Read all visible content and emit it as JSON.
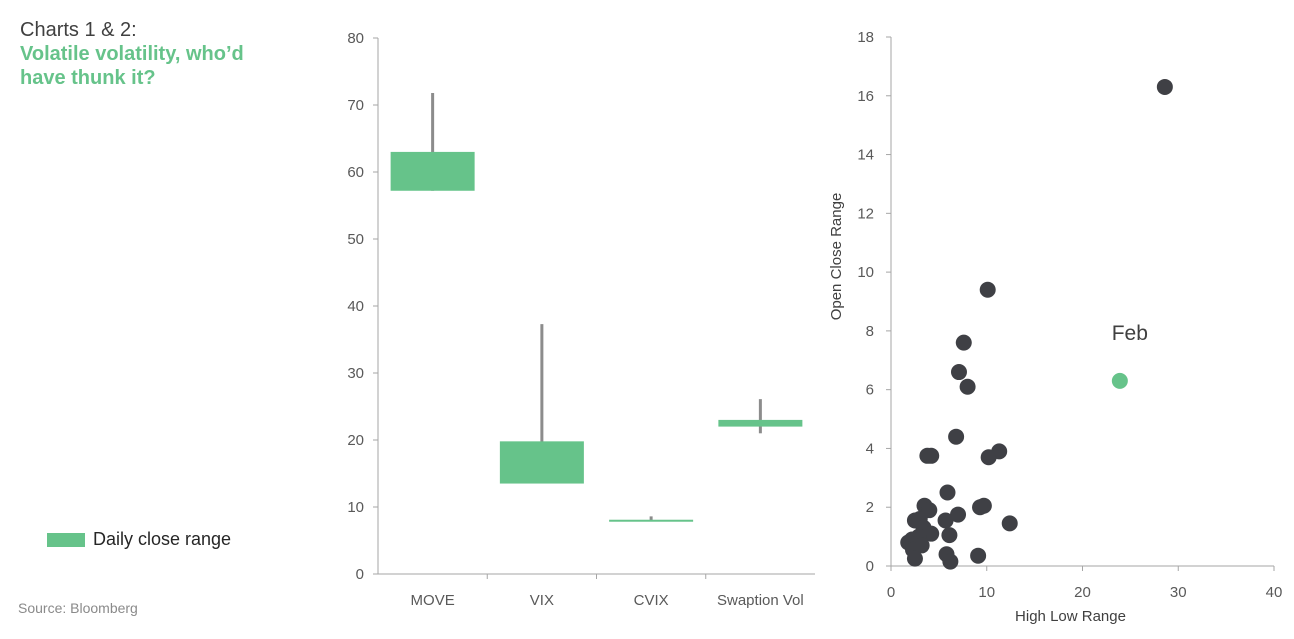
{
  "heading": {
    "label": "Charts 1 & 2:",
    "title_line1": "Volatile volatility, who’d",
    "title_line2": "have thunk it?"
  },
  "legend": {
    "label": "Daily close range",
    "color": "#66c38a"
  },
  "source": "Source: Bloomberg",
  "colors": {
    "bar": "#66c38a",
    "wick": "#8c8c8c",
    "dot": "#3f4045",
    "highlight": "#66c38a",
    "axis": "#a6a6a6"
  },
  "chart_data": [
    {
      "type": "bar",
      "subtype": "floating-range-with-high-wick",
      "categories": [
        "MOVE",
        "VIX",
        "CVIX",
        "Swaption Vol"
      ],
      "series": [
        {
          "name": "Daily close range low",
          "values": [
            57.2,
            13.5,
            7.9,
            22.0
          ]
        },
        {
          "name": "Daily close range high",
          "values": [
            63.0,
            19.8,
            8.1,
            23.0
          ]
        },
        {
          "name": "Intraday high",
          "values": [
            71.8,
            37.3,
            8.6,
            26.1
          ]
        },
        {
          "name": "Intraday low",
          "values": [
            57.2,
            13.5,
            7.9,
            21.0
          ]
        }
      ],
      "yticks": [
        "0",
        "10",
        "20",
        "30",
        "40",
        "50",
        "60",
        "70",
        "80"
      ],
      "ylim": [
        0,
        80
      ],
      "xlabel": "",
      "ylabel": ""
    },
    {
      "type": "scatter",
      "xlabel": "High Low Range",
      "ylabel": "Open Close Range",
      "xlim": [
        0,
        40
      ],
      "ylim": [
        0,
        18
      ],
      "xticks": [
        "0",
        "10",
        "20",
        "30",
        "40"
      ],
      "yticks": [
        "0",
        "2",
        "4",
        "6",
        "8",
        "10",
        "12",
        "14",
        "16",
        "18"
      ],
      "annotation": "Feb",
      "points": [
        {
          "x": 28.6,
          "y": 16.3
        },
        {
          "x": 10.1,
          "y": 9.4
        },
        {
          "x": 7.6,
          "y": 7.6
        },
        {
          "x": 7.1,
          "y": 6.6
        },
        {
          "x": 8.0,
          "y": 6.1
        },
        {
          "x": 6.8,
          "y": 4.4
        },
        {
          "x": 11.3,
          "y": 3.9
        },
        {
          "x": 10.2,
          "y": 3.7
        },
        {
          "x": 4.2,
          "y": 3.75
        },
        {
          "x": 3.8,
          "y": 3.75
        },
        {
          "x": 5.9,
          "y": 2.5
        },
        {
          "x": 9.7,
          "y": 2.05
        },
        {
          "x": 9.3,
          "y": 2.0
        },
        {
          "x": 3.5,
          "y": 2.05
        },
        {
          "x": 4.0,
          "y": 1.9
        },
        {
          "x": 7.0,
          "y": 1.75
        },
        {
          "x": 12.4,
          "y": 1.45
        },
        {
          "x": 5.7,
          "y": 1.55
        },
        {
          "x": 2.5,
          "y": 1.55
        },
        {
          "x": 3.0,
          "y": 1.6
        },
        {
          "x": 3.4,
          "y": 1.3
        },
        {
          "x": 4.2,
          "y": 1.1
        },
        {
          "x": 6.1,
          "y": 1.05
        },
        {
          "x": 2.9,
          "y": 1.0
        },
        {
          "x": 2.2,
          "y": 0.9
        },
        {
          "x": 1.8,
          "y": 0.8
        },
        {
          "x": 2.6,
          "y": 0.75
        },
        {
          "x": 3.2,
          "y": 0.7
        },
        {
          "x": 2.3,
          "y": 0.55
        },
        {
          "x": 5.8,
          "y": 0.4
        },
        {
          "x": 9.1,
          "y": 0.35
        },
        {
          "x": 2.5,
          "y": 0.25
        },
        {
          "x": 6.2,
          "y": 0.15
        }
      ],
      "highlight": {
        "label": "Feb",
        "x": 23.9,
        "y": 6.3
      }
    }
  ]
}
